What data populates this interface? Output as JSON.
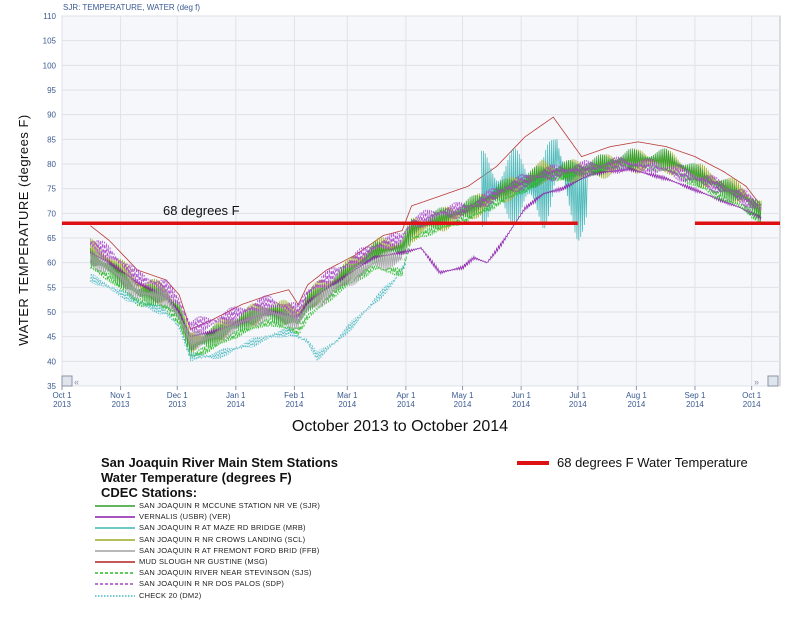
{
  "chart_data": {
    "type": "line",
    "header": "SJR: TEMPERATURE, WATER (deg f)",
    "ylabel": "WATER TEMPERATURE (degrees F)",
    "xlabel": "October 2013 to October 2014",
    "ylim": [
      35,
      110
    ],
    "yticks": [
      35,
      40,
      45,
      50,
      55,
      60,
      65,
      70,
      75,
      80,
      85,
      90,
      95,
      100,
      105,
      110
    ],
    "xlim_days": [
      0,
      380
    ],
    "xticks": [
      {
        "day": 0,
        "label": "Oct 1",
        "year": "2013"
      },
      {
        "day": 31,
        "label": "Nov 1",
        "year": "2013"
      },
      {
        "day": 61,
        "label": "Dec 1",
        "year": "2013"
      },
      {
        "day": 92,
        "label": "Jan 1",
        "year": "2014"
      },
      {
        "day": 123,
        "label": "Feb 1",
        "year": "2014"
      },
      {
        "day": 151,
        "label": "Mar 1",
        "year": "2014"
      },
      {
        "day": 182,
        "label": "Apr 1",
        "year": "2014"
      },
      {
        "day": 212,
        "label": "May 1",
        "year": "2014"
      },
      {
        "day": 243,
        "label": "Jun 1",
        "year": "2014"
      },
      {
        "day": 273,
        "label": "Jul 1",
        "year": "2014"
      },
      {
        "day": 304,
        "label": "Aug 1",
        "year": "2014"
      },
      {
        "day": 335,
        "label": "Sep 1",
        "year": "2014"
      },
      {
        "day": 365,
        "label": "Oct 1",
        "year": "2014"
      }
    ],
    "grid": true,
    "reference_line": {
      "value": 68,
      "label": "68 degrees F",
      "segments": [
        [
          0,
          273
        ],
        [
          335,
          380
        ]
      ]
    },
    "series": [
      {
        "name": "MUD SLOUGH NR GUSTINE (MSG)",
        "color": "#b22222",
        "style": "solid",
        "amp": 4.5,
        "offset": 1.5,
        "points": [
          [
            15,
            66
          ],
          [
            25,
            63
          ],
          [
            40,
            57
          ],
          [
            55,
            55
          ],
          [
            62,
            52
          ],
          [
            68,
            45
          ],
          [
            80,
            47
          ],
          [
            95,
            50
          ],
          [
            110,
            52
          ],
          [
            120,
            53
          ],
          [
            125,
            50
          ],
          [
            130,
            54
          ],
          [
            140,
            57
          ],
          [
            155,
            60
          ],
          [
            170,
            64
          ],
          [
            180,
            65
          ],
          [
            185,
            70
          ],
          [
            200,
            72
          ],
          [
            215,
            74
          ],
          [
            230,
            78
          ],
          [
            245,
            84
          ],
          [
            260,
            88
          ],
          [
            275,
            80
          ],
          [
            290,
            82
          ],
          [
            305,
            83
          ],
          [
            320,
            82
          ],
          [
            335,
            80
          ],
          [
            350,
            77
          ],
          [
            362,
            74
          ],
          [
            370,
            70
          ]
        ]
      },
      {
        "name": "SAN JOAQUIN R AT MAZE RD BRIDGE (MRB)",
        "color": "#3fb5b5",
        "style": "solid",
        "amp": 12,
        "offset": 0,
        "points": [
          [
            222,
            75
          ],
          [
            235,
            75
          ],
          [
            245,
            76
          ],
          [
            255,
            74
          ],
          [
            262,
            82
          ],
          [
            268,
            76
          ],
          [
            273,
            72
          ],
          [
            278,
            74
          ]
        ]
      },
      {
        "name": "SAN JOAQUIN R NR CROWS LANDING (SCL)",
        "color": "#9aaa20",
        "style": "solid",
        "amp": 2.5,
        "offset": 0.5,
        "points": [
          [
            15,
            62
          ],
          [
            25,
            60
          ],
          [
            40,
            55
          ],
          [
            55,
            53
          ],
          [
            62,
            50
          ],
          [
            68,
            43
          ],
          [
            80,
            45
          ],
          [
            95,
            48
          ],
          [
            110,
            50
          ],
          [
            125,
            49
          ],
          [
            130,
            52
          ],
          [
            145,
            56
          ],
          [
            165,
            62
          ],
          [
            180,
            63
          ],
          [
            185,
            66
          ],
          [
            200,
            68
          ],
          [
            215,
            70
          ],
          [
            235,
            74
          ],
          [
            255,
            78
          ],
          [
            275,
            78
          ],
          [
            300,
            80
          ],
          [
            320,
            80
          ],
          [
            345,
            76
          ],
          [
            362,
            73
          ],
          [
            370,
            70
          ]
        ]
      },
      {
        "name": "SAN JOAQUIN R MCCUNE STATION NR VE (SJR)",
        "color": "#2e9e2e",
        "style": "solid",
        "amp": 2.5,
        "offset": 0,
        "points": [
          [
            15,
            61
          ],
          [
            25,
            59
          ],
          [
            40,
            54
          ],
          [
            55,
            53
          ],
          [
            62,
            50
          ],
          [
            68,
            43
          ],
          [
            80,
            45
          ],
          [
            95,
            48
          ],
          [
            110,
            50
          ],
          [
            125,
            48
          ],
          [
            130,
            52
          ],
          [
            145,
            56
          ],
          [
            165,
            62
          ],
          [
            180,
            63
          ],
          [
            185,
            67
          ],
          [
            200,
            69
          ],
          [
            215,
            71
          ],
          [
            235,
            75
          ],
          [
            255,
            78
          ],
          [
            275,
            79
          ],
          [
            300,
            81
          ],
          [
            320,
            81
          ],
          [
            345,
            76
          ],
          [
            362,
            73
          ],
          [
            370,
            70
          ]
        ]
      },
      {
        "name": "VERNALIS (USBR) (VER)",
        "color": "#8a1ca8",
        "style": "solid",
        "amp": 1.2,
        "offset": 0,
        "points": [
          [
            15,
            62
          ],
          [
            25,
            60
          ],
          [
            40,
            56
          ],
          [
            55,
            53
          ],
          [
            62,
            50
          ],
          [
            68,
            45
          ],
          [
            80,
            46
          ],
          [
            95,
            48
          ],
          [
            110,
            50
          ],
          [
            125,
            49
          ],
          [
            130,
            52
          ],
          [
            145,
            56
          ],
          [
            165,
            61
          ],
          [
            180,
            62
          ],
          [
            190,
            63
          ],
          [
            200,
            58
          ],
          [
            212,
            59
          ],
          [
            218,
            61
          ],
          [
            225,
            60
          ],
          [
            233,
            64
          ],
          [
            245,
            71
          ],
          [
            255,
            74
          ],
          [
            265,
            75
          ],
          [
            280,
            78
          ],
          [
            300,
            79
          ],
          [
            320,
            77
          ],
          [
            340,
            74
          ],
          [
            360,
            71
          ],
          [
            370,
            69
          ]
        ]
      },
      {
        "name": "SAN JOAQUIN RIVER NEAR STEVINSON (SJS)",
        "color": "#2bbb2b",
        "style": "dashed",
        "amp": 2.5,
        "offset": -1,
        "points": [
          [
            15,
            60
          ],
          [
            25,
            58
          ],
          [
            40,
            53
          ],
          [
            55,
            52
          ],
          [
            62,
            49
          ],
          [
            68,
            42
          ],
          [
            80,
            44
          ],
          [
            95,
            47
          ],
          [
            110,
            49
          ],
          [
            125,
            47
          ],
          [
            130,
            50
          ],
          [
            145,
            55
          ],
          [
            165,
            60
          ],
          [
            180,
            59
          ],
          [
            185,
            66
          ],
          [
            200,
            68
          ],
          [
            215,
            70
          ],
          [
            235,
            74
          ],
          [
            255,
            78
          ],
          [
            275,
            79
          ],
          [
            300,
            81
          ],
          [
            320,
            80
          ],
          [
            345,
            75
          ],
          [
            362,
            72
          ],
          [
            370,
            69
          ]
        ]
      },
      {
        "name": "SAN JOAQUIN R NR DOS PALOS (SDP)",
        "color": "#a844c8",
        "style": "dashed",
        "amp": 2,
        "offset": 1,
        "points": [
          [
            15,
            63
          ],
          [
            25,
            61
          ],
          [
            40,
            56
          ],
          [
            55,
            54
          ],
          [
            62,
            51
          ],
          [
            68,
            46
          ],
          [
            80,
            47
          ],
          [
            95,
            49
          ],
          [
            110,
            51
          ],
          [
            125,
            49
          ],
          [
            130,
            53
          ],
          [
            145,
            57
          ],
          [
            165,
            62
          ],
          [
            180,
            64
          ],
          [
            185,
            67
          ],
          [
            200,
            69
          ],
          [
            215,
            70
          ],
          [
            235,
            74
          ],
          [
            255,
            77
          ],
          [
            275,
            78
          ],
          [
            300,
            79
          ],
          [
            320,
            78
          ],
          [
            345,
            75
          ],
          [
            362,
            72
          ],
          [
            370,
            70
          ]
        ]
      },
      {
        "name": "SAN JOAQUIN R AT FREMONT FORD BRID (FFB)",
        "color": "#a0a0a0",
        "style": "solid",
        "amp": 2,
        "offset": 0,
        "points": [
          [
            15,
            61
          ],
          [
            25,
            59
          ],
          [
            40,
            54
          ],
          [
            55,
            53
          ],
          [
            62,
            49
          ],
          [
            68,
            44
          ],
          [
            80,
            45
          ],
          [
            95,
            48
          ],
          [
            110,
            50
          ],
          [
            125,
            48
          ],
          [
            130,
            51
          ],
          [
            145,
            55
          ],
          [
            165,
            60
          ],
          [
            180,
            61
          ]
        ]
      },
      {
        "name": "CHECK 20 (DM2)",
        "color": "#44b8c0",
        "style": "dotted",
        "amp": 1.5,
        "offset": 0,
        "points": [
          [
            15,
            57
          ],
          [
            25,
            55
          ],
          [
            40,
            52
          ],
          [
            55,
            50
          ],
          [
            62,
            47
          ],
          [
            68,
            41
          ],
          [
            80,
            41
          ],
          [
            95,
            43
          ],
          [
            110,
            45
          ],
          [
            120,
            46
          ],
          [
            130,
            44
          ],
          [
            135,
            41
          ],
          [
            145,
            44
          ],
          [
            160,
            50
          ],
          [
            175,
            56
          ],
          [
            182,
            60
          ]
        ]
      }
    ]
  },
  "legend": {
    "title_lines": [
      "San Joaquin River Main Stem Stations",
      "Water Temperature (degrees F)",
      "CDEC Stations:"
    ],
    "items": [
      {
        "label": "SAN JOAQUIN R MCCUNE STATION NR VE (SJR)",
        "color": "#2e9e2e",
        "style": "solid"
      },
      {
        "label": "VERNALIS (USBR) (VER)",
        "color": "#8a1ca8",
        "style": "solid"
      },
      {
        "label": "SAN JOAQUIN R AT MAZE RD BRIDGE (MRB)",
        "color": "#3fb5b5",
        "style": "solid"
      },
      {
        "label": "SAN JOAQUIN R NR CROWS LANDING (SCL)",
        "color": "#9aaa20",
        "style": "solid"
      },
      {
        "label": "SAN JOAQUIN R AT FREMONT FORD BRID (FFB)",
        "color": "#a0a0a0",
        "style": "solid"
      },
      {
        "label": "MUD SLOUGH NR GUSTINE (MSG)",
        "color": "#b22222",
        "style": "solid"
      },
      {
        "label": "SAN JOAQUIN RIVER NEAR STEVINSON (SJS)",
        "color": "#2bbb2b",
        "style": "dashed"
      },
      {
        "label": "SAN JOAQUIN R NR DOS PALOS (SDP)",
        "color": "#a844c8",
        "style": "dashed"
      },
      {
        "label": "CHECK 20 (DM2)",
        "color": "#44b8c0",
        "style": "dotted"
      }
    ],
    "reference_label": "68 degrees F Water Temperature",
    "reference_color": "#dd1111"
  }
}
